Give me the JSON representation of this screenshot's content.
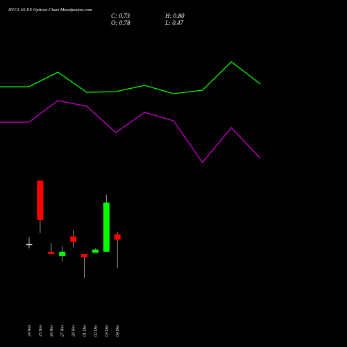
{
  "chart_data": [
    {
      "type": "candlestick",
      "title": "HFCL 65 PE Options Chart Munafasutra.com",
      "ohlc_labels": [
        "C: 0.73",
        "H: 0.80",
        "O: 0.78",
        "L: 0.47"
      ],
      "categories": [
        "24 Nov",
        "25 Nov",
        "26 Nov",
        "27 Nov",
        "28 Nov",
        "01 Dec",
        "02 Dec",
        "03 Dec",
        "04 Dec"
      ],
      "open": [
        0.69,
        1.27,
        0.62,
        0.58,
        0.76,
        0.6,
        0.61,
        0.62,
        0.78
      ],
      "high": [
        0.75,
        1.27,
        0.7,
        0.67,
        0.82,
        0.6,
        0.65,
        1.14,
        0.8
      ],
      "low": [
        0.65,
        0.79,
        0.6,
        0.53,
        0.66,
        0.38,
        0.61,
        0.62,
        0.47
      ],
      "close": [
        0.69,
        0.91,
        0.6,
        0.62,
        0.71,
        0.57,
        0.64,
        1.07,
        0.73
      ],
      "up_color": "#00ff00",
      "down_color": "#ff0000",
      "flat_color": "#dddddd",
      "ylim": [
        -0.25,
        2.92
      ]
    },
    {
      "type": "line",
      "series": [
        {
          "color": "#00ff00",
          "values": [
            375,
            375,
            396,
            367,
            368,
            377,
            365,
            370,
            411,
            379
          ]
        },
        {
          "color": "#cc00cc",
          "values": [
            324,
            324,
            355,
            347,
            309,
            338,
            326,
            266,
            316,
            272
          ]
        }
      ],
      "ylim": [
        0,
        500
      ]
    }
  ]
}
